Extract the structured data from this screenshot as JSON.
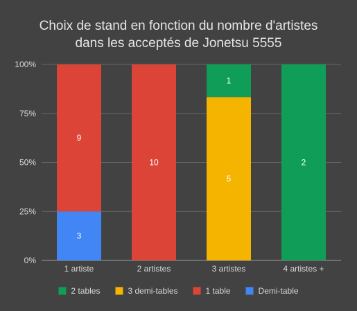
{
  "chart_data": {
    "type": "bar",
    "stacked": "percent",
    "title_lines": [
      "Choix de stand en fonction du nombre d'artistes",
      "dans les acceptés de Jonetsu 5555"
    ],
    "categories": [
      "1 artiste",
      "2 artistes",
      "3 artistes",
      "4 artistes +"
    ],
    "y_ticks": [
      "0%",
      "25%",
      "50%",
      "75%",
      "100%"
    ],
    "ylim": [
      0,
      100
    ],
    "grid": true,
    "legend_position": "bottom",
    "series": [
      {
        "name": "Demi-table",
        "color": "#4285f4",
        "values": [
          3,
          0,
          0,
          0
        ]
      },
      {
        "name": "1 table",
        "color": "#db4437",
        "values": [
          9,
          10,
          0,
          0
        ]
      },
      {
        "name": "3 demi-tables",
        "color": "#f4b400",
        "values": [
          0,
          0,
          5,
          0
        ]
      },
      {
        "name": "2 tables",
        "color": "#0f9d58",
        "values": [
          0,
          0,
          1,
          2
        ]
      }
    ],
    "legend_order": [
      "2 tables",
      "3 demi-tables",
      "1 table",
      "Demi-table"
    ]
  }
}
